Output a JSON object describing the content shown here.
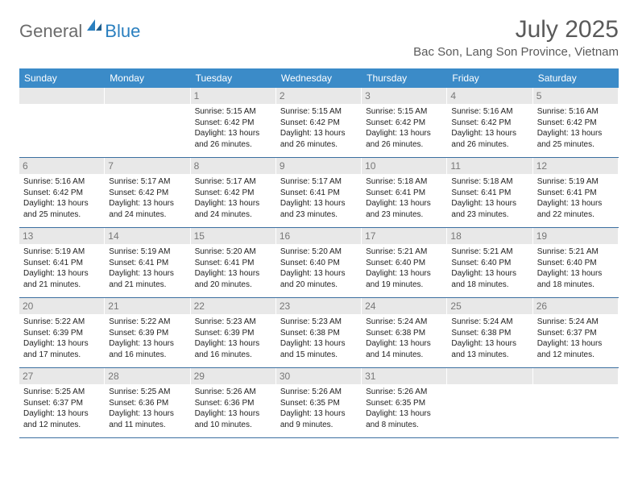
{
  "logo": {
    "part1": "General",
    "part2": "Blue"
  },
  "title": "July 2025",
  "location": "Bac Son, Lang Son Province, Vietnam",
  "header_bg": "#3b8bc8",
  "weekdays": [
    "Sunday",
    "Monday",
    "Tuesday",
    "Wednesday",
    "Thursday",
    "Friday",
    "Saturday"
  ],
  "weeks": [
    [
      null,
      null,
      {
        "n": "1",
        "sr": "5:15 AM",
        "ss": "6:42 PM",
        "dl": "13 hours and 26 minutes."
      },
      {
        "n": "2",
        "sr": "5:15 AM",
        "ss": "6:42 PM",
        "dl": "13 hours and 26 minutes."
      },
      {
        "n": "3",
        "sr": "5:15 AM",
        "ss": "6:42 PM",
        "dl": "13 hours and 26 minutes."
      },
      {
        "n": "4",
        "sr": "5:16 AM",
        "ss": "6:42 PM",
        "dl": "13 hours and 26 minutes."
      },
      {
        "n": "5",
        "sr": "5:16 AM",
        "ss": "6:42 PM",
        "dl": "13 hours and 25 minutes."
      }
    ],
    [
      {
        "n": "6",
        "sr": "5:16 AM",
        "ss": "6:42 PM",
        "dl": "13 hours and 25 minutes."
      },
      {
        "n": "7",
        "sr": "5:17 AM",
        "ss": "6:42 PM",
        "dl": "13 hours and 24 minutes."
      },
      {
        "n": "8",
        "sr": "5:17 AM",
        "ss": "6:42 PM",
        "dl": "13 hours and 24 minutes."
      },
      {
        "n": "9",
        "sr": "5:17 AM",
        "ss": "6:41 PM",
        "dl": "13 hours and 23 minutes."
      },
      {
        "n": "10",
        "sr": "5:18 AM",
        "ss": "6:41 PM",
        "dl": "13 hours and 23 minutes."
      },
      {
        "n": "11",
        "sr": "5:18 AM",
        "ss": "6:41 PM",
        "dl": "13 hours and 23 minutes."
      },
      {
        "n": "12",
        "sr": "5:19 AM",
        "ss": "6:41 PM",
        "dl": "13 hours and 22 minutes."
      }
    ],
    [
      {
        "n": "13",
        "sr": "5:19 AM",
        "ss": "6:41 PM",
        "dl": "13 hours and 21 minutes."
      },
      {
        "n": "14",
        "sr": "5:19 AM",
        "ss": "6:41 PM",
        "dl": "13 hours and 21 minutes."
      },
      {
        "n": "15",
        "sr": "5:20 AM",
        "ss": "6:41 PM",
        "dl": "13 hours and 20 minutes."
      },
      {
        "n": "16",
        "sr": "5:20 AM",
        "ss": "6:40 PM",
        "dl": "13 hours and 20 minutes."
      },
      {
        "n": "17",
        "sr": "5:21 AM",
        "ss": "6:40 PM",
        "dl": "13 hours and 19 minutes."
      },
      {
        "n": "18",
        "sr": "5:21 AM",
        "ss": "6:40 PM",
        "dl": "13 hours and 18 minutes."
      },
      {
        "n": "19",
        "sr": "5:21 AM",
        "ss": "6:40 PM",
        "dl": "13 hours and 18 minutes."
      }
    ],
    [
      {
        "n": "20",
        "sr": "5:22 AM",
        "ss": "6:39 PM",
        "dl": "13 hours and 17 minutes."
      },
      {
        "n": "21",
        "sr": "5:22 AM",
        "ss": "6:39 PM",
        "dl": "13 hours and 16 minutes."
      },
      {
        "n": "22",
        "sr": "5:23 AM",
        "ss": "6:39 PM",
        "dl": "13 hours and 16 minutes."
      },
      {
        "n": "23",
        "sr": "5:23 AM",
        "ss": "6:38 PM",
        "dl": "13 hours and 15 minutes."
      },
      {
        "n": "24",
        "sr": "5:24 AM",
        "ss": "6:38 PM",
        "dl": "13 hours and 14 minutes."
      },
      {
        "n": "25",
        "sr": "5:24 AM",
        "ss": "6:38 PM",
        "dl": "13 hours and 13 minutes."
      },
      {
        "n": "26",
        "sr": "5:24 AM",
        "ss": "6:37 PM",
        "dl": "13 hours and 12 minutes."
      }
    ],
    [
      {
        "n": "27",
        "sr": "5:25 AM",
        "ss": "6:37 PM",
        "dl": "13 hours and 12 minutes."
      },
      {
        "n": "28",
        "sr": "5:25 AM",
        "ss": "6:36 PM",
        "dl": "13 hours and 11 minutes."
      },
      {
        "n": "29",
        "sr": "5:26 AM",
        "ss": "6:36 PM",
        "dl": "13 hours and 10 minutes."
      },
      {
        "n": "30",
        "sr": "5:26 AM",
        "ss": "6:35 PM",
        "dl": "13 hours and 9 minutes."
      },
      {
        "n": "31",
        "sr": "5:26 AM",
        "ss": "6:35 PM",
        "dl": "13 hours and 8 minutes."
      },
      null,
      null
    ]
  ],
  "labels": {
    "sunrise": "Sunrise: ",
    "sunset": "Sunset: ",
    "daylight": "Daylight: "
  }
}
